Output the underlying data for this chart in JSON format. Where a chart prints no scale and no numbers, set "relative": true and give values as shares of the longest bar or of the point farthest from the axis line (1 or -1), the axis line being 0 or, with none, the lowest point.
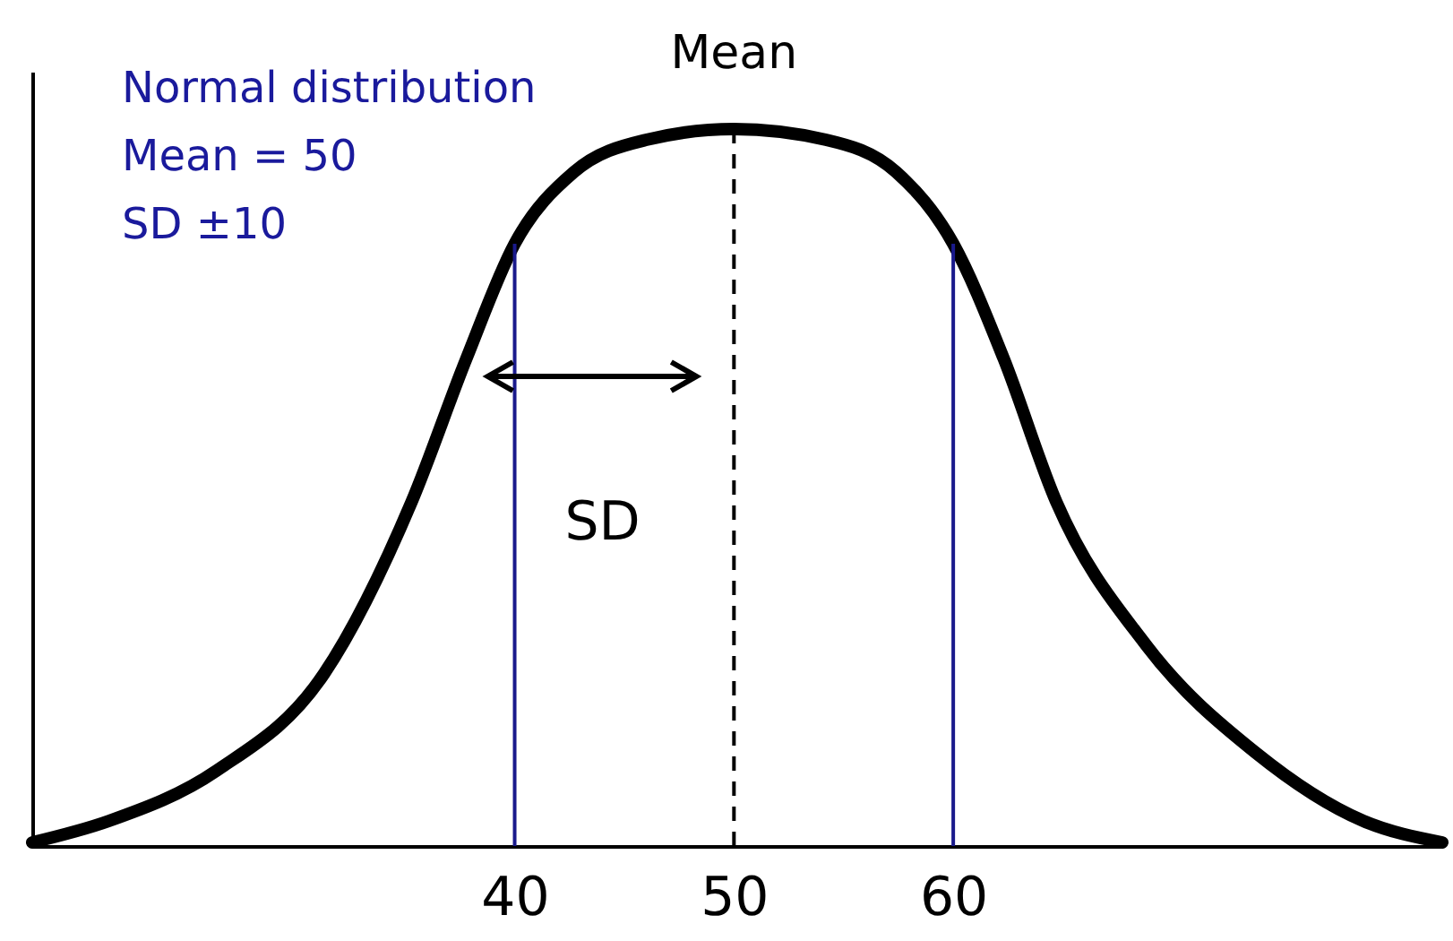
{
  "chart_data": {
    "type": "line",
    "relative": true,
    "x": [
      18,
      21.5,
      26.4,
      31.3,
      35.3,
      37.8,
      40,
      42.7,
      46,
      50,
      54.2,
      57.4,
      60,
      62.3,
      64.7,
      68.8,
      73.8,
      78.7,
      82.3
    ],
    "series": [
      {
        "color": "#000000",
        "values": [
          0.005,
          0.035,
          0.105,
          0.24,
          0.48,
          0.68,
          0.84,
          0.94,
          0.985,
          1,
          0.985,
          0.94,
          0.84,
          0.68,
          0.48,
          0.28,
          0.13,
          0.035,
          0.005
        ]
      }
    ],
    "xlim": [
      18,
      82.3
    ],
    "xticks": [
      40,
      50,
      60
    ],
    "ref_lines": [
      {
        "axis": "x",
        "value": 40,
        "color": "#1a1a8c",
        "line_style": "solid"
      },
      {
        "axis": "x",
        "value": 50,
        "label": "Mean",
        "color": "#000000",
        "line_style": "dashed"
      },
      {
        "axis": "x",
        "value": 60,
        "color": "#1a1a8c",
        "line_style": "solid"
      }
    ],
    "annotations": [
      "Normal distribution",
      "Mean = 50",
      "SD ±10",
      "SD"
    ]
  }
}
